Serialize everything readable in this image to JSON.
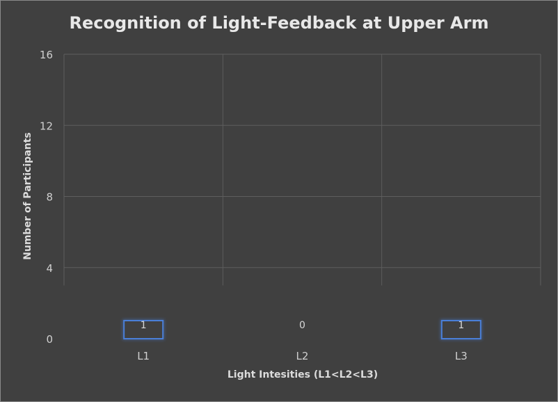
{
  "chart_data": {
    "type": "bar",
    "title": "Recognition of Light-Feedback at Upper Arm",
    "xlabel": "Light Intesities (L1<L2<L3)",
    "ylabel": "Number of Participants",
    "categories": [
      "L1",
      "L2",
      "L3"
    ],
    "values": [
      1,
      0,
      1
    ],
    "data_labels": [
      "1",
      "0",
      "1"
    ],
    "yticks": [
      "0",
      "4",
      "8",
      "12",
      "16"
    ],
    "ylim": [
      0,
      16
    ],
    "grid": true,
    "legend": "none",
    "colors": {
      "background": "#404040",
      "bar_fill": "#404040",
      "bar_stroke": "#4a7fd8",
      "gridline": "#5e5e5e",
      "text": "#dcdcdc"
    }
  }
}
